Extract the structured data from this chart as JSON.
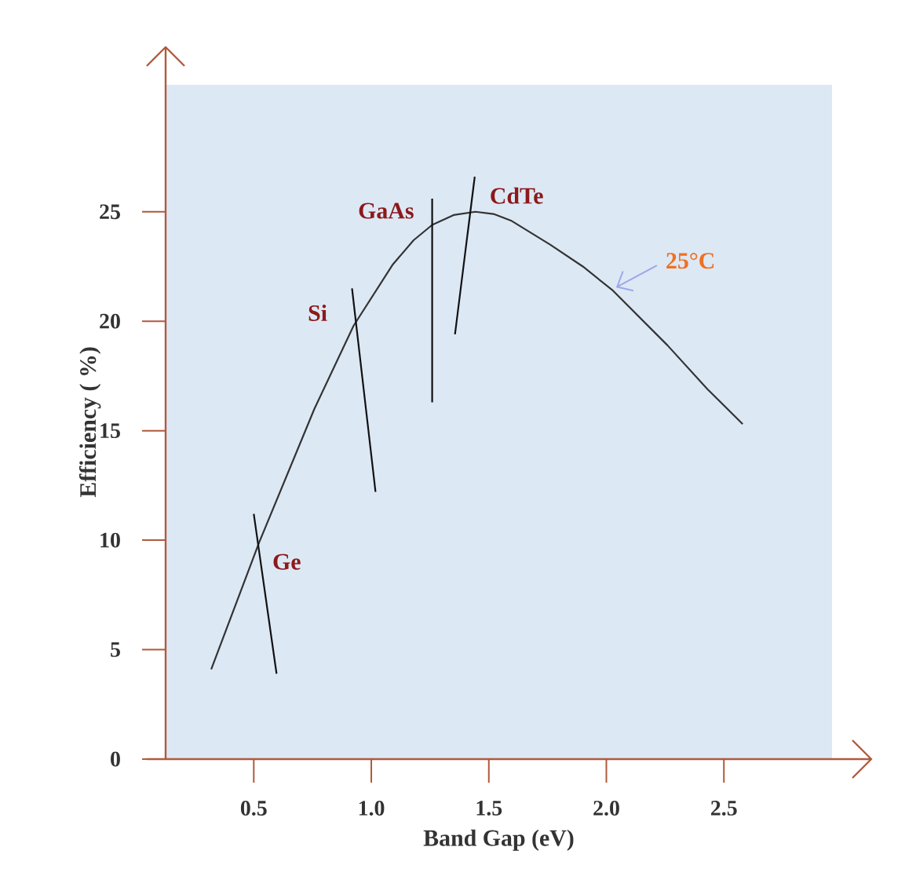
{
  "chart_data": {
    "type": "line",
    "xlabel": "Band Gap (eV)",
    "ylabel": "Efficiency ( %)",
    "xlim": [
      0.125,
      2.96
    ],
    "ylim": [
      0,
      30.8
    ],
    "xticks": [
      {
        "value": 0.5,
        "label": "0.5"
      },
      {
        "value": 1.0,
        "label": "1.0"
      },
      {
        "value": 1.5,
        "label": "1.5"
      },
      {
        "value": 2.0,
        "label": "2.0"
      },
      {
        "value": 2.5,
        "label": "2.5"
      }
    ],
    "yticks": [
      0,
      5,
      10,
      15,
      20,
      25
    ],
    "marker": "none",
    "line_style": "solid",
    "grid": false,
    "series": [
      {
        "color": "#333333",
        "x": [
          0.319,
          0.523,
          0.758,
          0.925,
          1.092,
          1.18,
          1.259,
          1.35,
          1.443,
          1.52,
          1.594,
          1.761,
          1.9,
          2.028,
          2.26,
          2.43,
          2.58
        ],
        "values": [
          4.1,
          9.9,
          16.0,
          19.8,
          22.6,
          23.7,
          24.4,
          24.85,
          25.0,
          24.9,
          24.6,
          23.5,
          22.5,
          21.4,
          18.9,
          16.9,
          15.3
        ]
      },
      {
        "name": "Ge",
        "color": "#111111",
        "x": [
          0.5,
          0.597
        ],
        "values": [
          11.2,
          3.9
        ]
      },
      {
        "name": "Si",
        "color": "#111111",
        "x": [
          0.918,
          1.018
        ],
        "values": [
          21.5,
          12.2
        ]
      },
      {
        "name": "GaAs",
        "color": "#111111",
        "x": [
          1.259,
          1.259
        ],
        "values": [
          25.6,
          16.3
        ]
      },
      {
        "name": "CdTe",
        "color": "#111111",
        "x": [
          1.44,
          1.356
        ],
        "values": [
          26.6,
          19.4
        ]
      }
    ],
    "annotations": [
      {
        "text": "25°C",
        "x": 2.028,
        "y": 21.4
      }
    ]
  }
}
